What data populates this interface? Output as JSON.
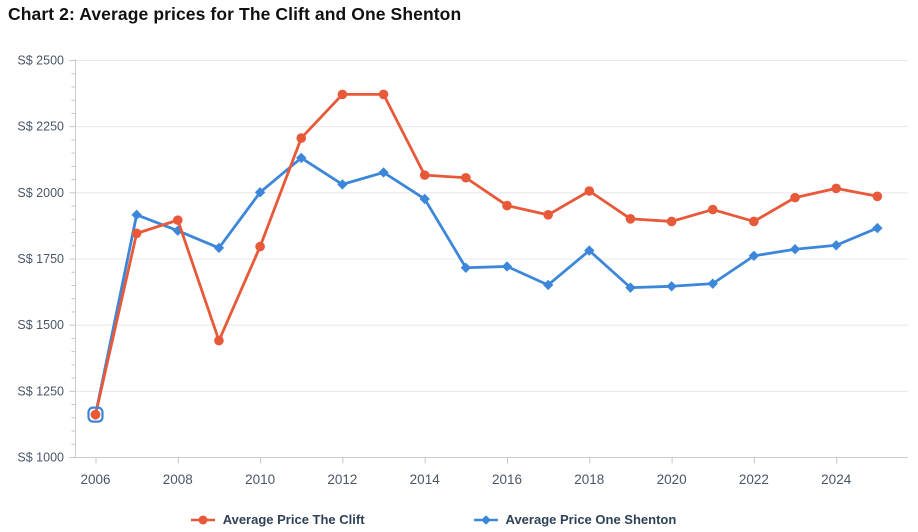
{
  "title": "Chart 2: Average prices for The Clift and One Shenton",
  "chart_data": {
    "type": "line",
    "x": [
      2006,
      2007,
      2008,
      2009,
      2010,
      2011,
      2012,
      2013,
      2014,
      2015,
      2016,
      2017,
      2018,
      2019,
      2020,
      2021,
      2022,
      2023,
      2024,
      2025
    ],
    "x_tick_labels": [
      "2006",
      "2008",
      "2010",
      "2012",
      "2014",
      "2016",
      "2018",
      "2020",
      "2022",
      "2024"
    ],
    "y_axis": {
      "prefix": "S$",
      "min": 1000,
      "max": 2500,
      "tick_step": 250,
      "minor_tick_step": 50
    },
    "ylim": [
      1000,
      2500
    ],
    "grid": "horizontal",
    "legend_position": "bottom",
    "series": [
      {
        "name": "Average Price The Clift",
        "color": "#E8593A",
        "marker": "circle",
        "values": [
          1160,
          1845,
          1895,
          1440,
          1795,
          2205,
          2370,
          2370,
          2065,
          2055,
          1950,
          1915,
          2005,
          1900,
          1890,
          1935,
          1890,
          1980,
          2015,
          1985
        ]
      },
      {
        "name": "Average Price One Shenton",
        "color": "#3C87D9",
        "marker": "diamond",
        "values": [
          1160,
          1915,
          1855,
          1790,
          2000,
          2130,
          2030,
          2075,
          1975,
          1715,
          1720,
          1650,
          1780,
          1640,
          1645,
          1655,
          1760,
          1785,
          1800,
          1865
        ]
      }
    ],
    "first_point_highlight_year": 2006
  }
}
